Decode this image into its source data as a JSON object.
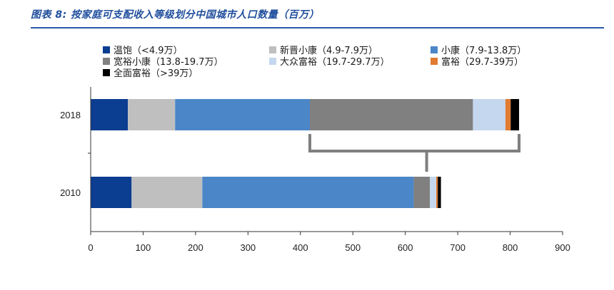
{
  "title": "图表 8:  按家庭可支配收入等级划分中国城市人口数量（百万）",
  "legend": [
    {
      "label": "温饱（<4.9万）",
      "color": "#0b3d91"
    },
    {
      "label": "新晋小康（4.9-7.9万）",
      "color": "#bfbfbf"
    },
    {
      "label": "小康（7.9-13.8万）",
      "color": "#4a86c8"
    },
    {
      "label": "宽裕小康（13.8-19.7万）",
      "color": "#808080"
    },
    {
      "label": "大众富裕（19.7-29.7万）",
      "color": "#c5d7ee"
    },
    {
      "label": "富裕（29.7-39万）",
      "color": "#e07b30"
    },
    {
      "label": "全面富裕（>39万）",
      "color": "#000000"
    }
  ],
  "chart_data": {
    "type": "bar",
    "orientation": "horizontal",
    "stacked": true,
    "categories": [
      "2018",
      "2010"
    ],
    "series": [
      {
        "name": "温饱（<4.9万）",
        "values": [
          71,
          78
        ]
      },
      {
        "name": "新晋小康（4.9-7.9万）",
        "values": [
          90,
          135
        ]
      },
      {
        "name": "小康（7.9-13.8万）",
        "values": [
          257,
          403
        ]
      },
      {
        "name": "宽裕小康（13.8-19.7万）",
        "values": [
          311,
          31
        ]
      },
      {
        "name": "大众富裕（19.7-29.7万）",
        "values": [
          62,
          12
        ]
      },
      {
        "name": "富裕（29.7-39万）",
        "values": [
          10,
          3
        ]
      },
      {
        "name": "全面富裕（>39万）",
        "values": [
          16,
          6
        ]
      }
    ],
    "xlim": [
      0,
      900
    ],
    "xticks": [
      "0",
      "100",
      "200",
      "300",
      "400",
      "500",
      "600",
      "700",
      "800",
      "900"
    ],
    "grid": false,
    "legend_position": "top",
    "annotation": "bracket connecting the 2010 total to the 2018 segments from 宽裕小康 onward"
  }
}
